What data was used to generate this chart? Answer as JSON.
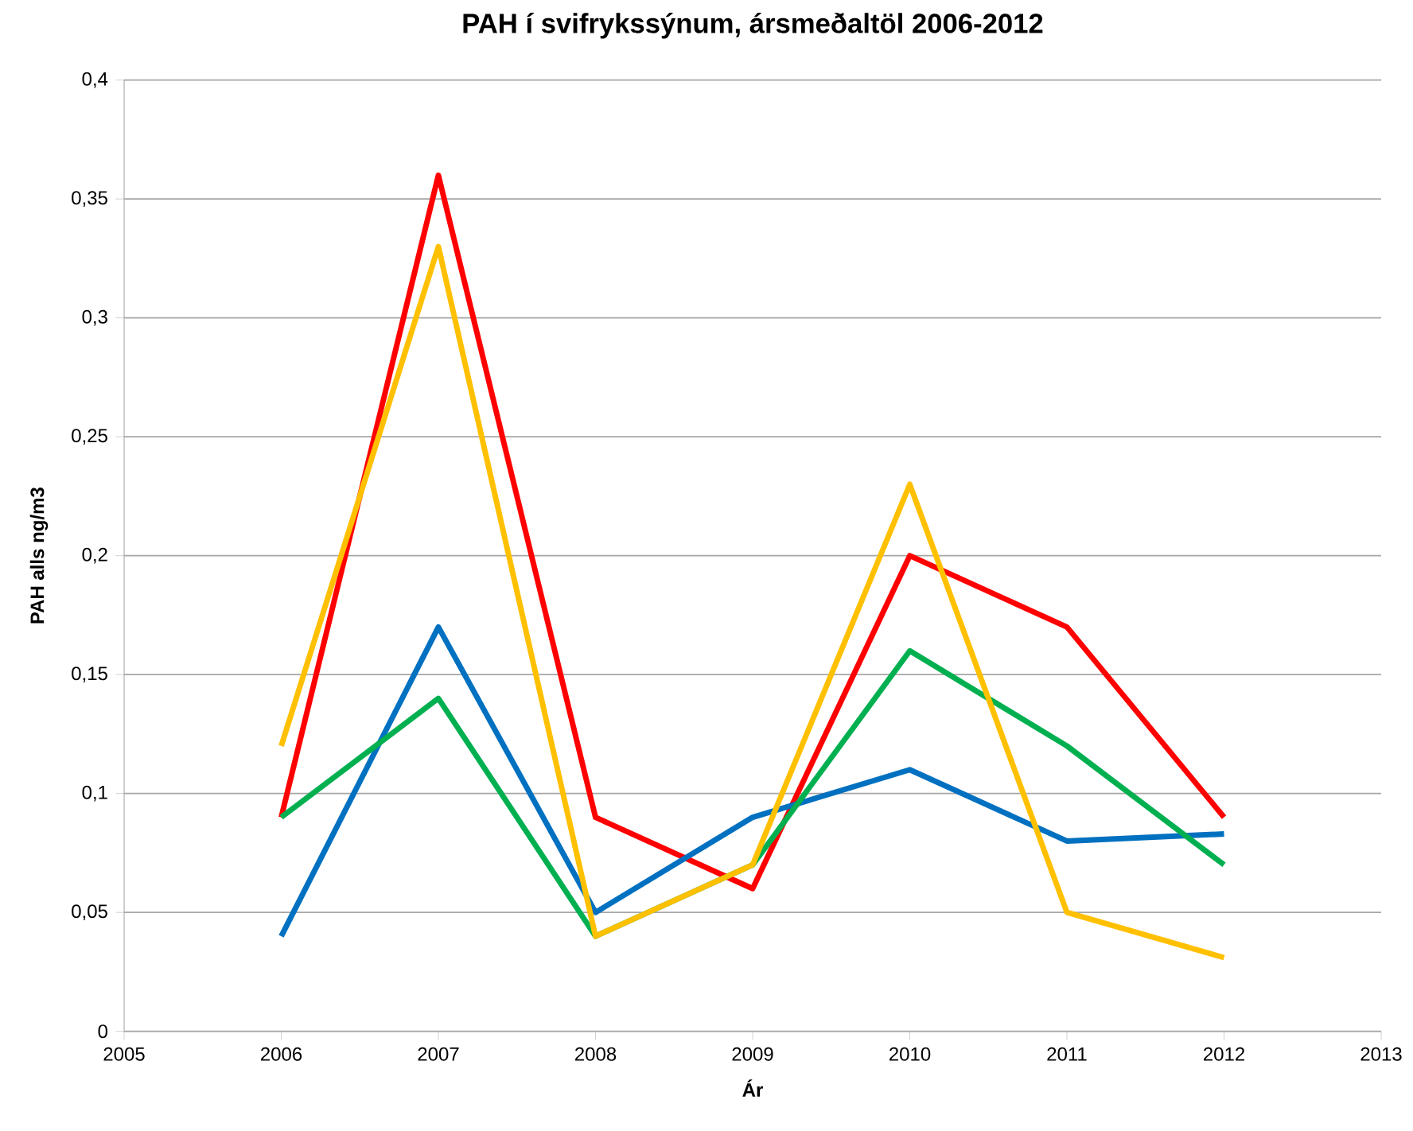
{
  "chart_data": {
    "type": "line",
    "title": "PAH í svifrykssýnum, ársmeðaltöl 2006-2012",
    "xlabel": "Ár",
    "ylabel": "PAH alls ng/m3",
    "x": [
      2006,
      2007,
      2008,
      2009,
      2010,
      2011,
      2012
    ],
    "series": [
      {
        "color": "#ff0000",
        "values": [
          0.09,
          0.36,
          0.09,
          0.06,
          0.2,
          0.17,
          0.09
        ]
      },
      {
        "color": "#0070c0",
        "values": [
          0.04,
          0.17,
          0.05,
          0.09,
          0.11,
          0.08,
          0.083
        ]
      },
      {
        "color": "#00b050",
        "values": [
          0.09,
          0.14,
          0.04,
          0.07,
          0.16,
          0.12,
          0.07
        ]
      },
      {
        "color": "#ffc000",
        "values": [
          0.12,
          0.33,
          0.04,
          0.07,
          0.23,
          0.05,
          0.031
        ]
      }
    ],
    "xlim": [
      2005,
      2013
    ],
    "xticks": [
      2005,
      2006,
      2007,
      2008,
      2009,
      2010,
      2011,
      2012,
      2013
    ],
    "ylim": [
      0,
      0.4
    ],
    "yticks": [
      0,
      {
        "value": 0.05,
        "label": "0,05"
      },
      {
        "value": 0.1,
        "label": "0,1"
      },
      {
        "value": 0.15,
        "label": "0,15"
      },
      {
        "value": 0.2,
        "label": "0,2"
      },
      {
        "value": 0.25,
        "label": "0,25"
      },
      {
        "value": 0.3,
        "label": "0,3"
      },
      {
        "value": 0.35,
        "label": "0,35"
      },
      {
        "value": 0.4,
        "label": "0,4"
      }
    ],
    "grid": "y",
    "marker": "none",
    "line_style": "solid"
  }
}
